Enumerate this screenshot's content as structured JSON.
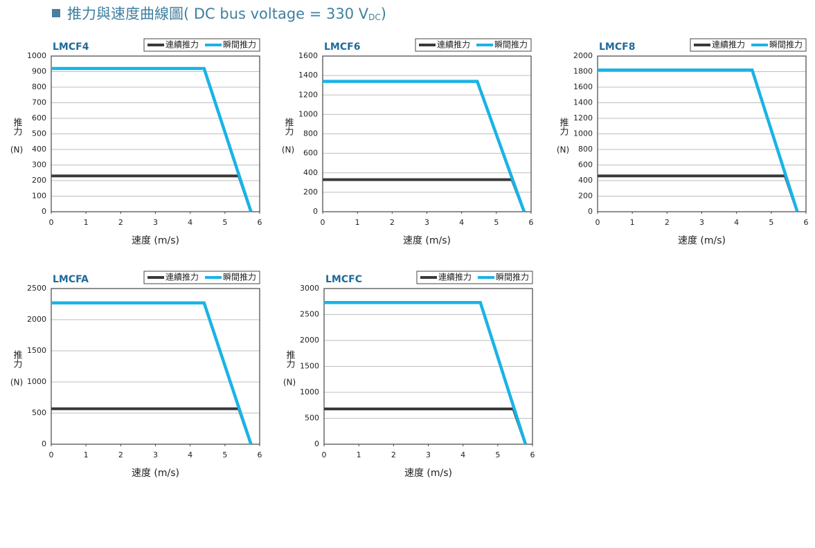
{
  "header": {
    "title": "推力與速度曲線圖( DC bus voltage = 330 V",
    "subscript": "DC",
    "end": ")"
  },
  "chart_data": [
    {
      "type": "line",
      "title": "LMCF4",
      "xlabel": "速度 (m/s)",
      "ylabel": "推力",
      "yunit": "(N)",
      "xlim": [
        0,
        6
      ],
      "xticks": [
        0,
        1,
        2,
        3,
        4,
        5,
        6
      ],
      "ylim": [
        0,
        1000
      ],
      "yticks": [
        0,
        100,
        200,
        300,
        400,
        500,
        600,
        700,
        800,
        900,
        1000
      ],
      "grid": true,
      "series": [
        {
          "name": "連續推力",
          "color": "#3a3a3a",
          "x": [
            0,
            5.4,
            5.75
          ],
          "values": [
            230,
            230,
            0
          ]
        },
        {
          "name": "瞬間推力",
          "color": "#1ab3e6",
          "x": [
            0,
            4.4,
            5.75
          ],
          "values": [
            920,
            920,
            0
          ]
        }
      ]
    },
    {
      "type": "line",
      "title": "LMCF6",
      "xlabel": "速度 (m/s)",
      "ylabel": "推力",
      "yunit": "(N)",
      "xlim": [
        0,
        6
      ],
      "xticks": [
        0,
        1,
        2,
        3,
        4,
        5,
        6
      ],
      "ylim": [
        0,
        1600
      ],
      "yticks": [
        0,
        200,
        400,
        600,
        800,
        1000,
        1200,
        1400,
        1600
      ],
      "grid": true,
      "series": [
        {
          "name": "連續推力",
          "color": "#3a3a3a",
          "x": [
            0,
            5.45,
            5.8
          ],
          "values": [
            330,
            330,
            0
          ]
        },
        {
          "name": "瞬間推力",
          "color": "#1ab3e6",
          "x": [
            0,
            4.45,
            5.8
          ],
          "values": [
            1340,
            1340,
            0
          ]
        }
      ]
    },
    {
      "type": "line",
      "title": "LMCF8",
      "xlabel": "速度 (m/s)",
      "ylabel": "推力",
      "yunit": "(N)",
      "xlim": [
        0,
        6
      ],
      "xticks": [
        0,
        1,
        2,
        3,
        4,
        5,
        6
      ],
      "ylim": [
        0,
        2000
      ],
      "yticks": [
        0,
        200,
        400,
        600,
        800,
        1000,
        1200,
        1400,
        1600,
        1800,
        2000
      ],
      "grid": true,
      "series": [
        {
          "name": "連續推力",
          "color": "#3a3a3a",
          "x": [
            0,
            5.4,
            5.75
          ],
          "values": [
            460,
            460,
            0
          ]
        },
        {
          "name": "瞬間推力",
          "color": "#1ab3e6",
          "x": [
            0,
            4.45,
            5.75
          ],
          "values": [
            1820,
            1820,
            0
          ]
        }
      ]
    },
    {
      "type": "line",
      "title": "LMCFA",
      "xlabel": "速度 (m/s)",
      "ylabel": "推力",
      "yunit": "(N)",
      "xlim": [
        0,
        6
      ],
      "xticks": [
        0,
        1,
        2,
        3,
        4,
        5,
        6
      ],
      "ylim": [
        0,
        2500
      ],
      "yticks": [
        0,
        500,
        1000,
        1500,
        2000,
        2500
      ],
      "grid": true,
      "series": [
        {
          "name": "連續推力",
          "color": "#3a3a3a",
          "x": [
            0,
            5.4,
            5.75
          ],
          "values": [
            570,
            570,
            0
          ]
        },
        {
          "name": "瞬間推力",
          "color": "#1ab3e6",
          "x": [
            0,
            4.4,
            5.75
          ],
          "values": [
            2270,
            2270,
            0
          ]
        }
      ]
    },
    {
      "type": "line",
      "title": "LMCFC",
      "xlabel": "速度 (m/s)",
      "ylabel": "推力",
      "yunit": "(N)",
      "xlim": [
        0,
        6
      ],
      "xticks": [
        0,
        1,
        2,
        3,
        4,
        5,
        6
      ],
      "ylim": [
        0,
        3000
      ],
      "yticks": [
        0,
        500,
        1000,
        1500,
        2000,
        2500,
        3000
      ],
      "grid": true,
      "series": [
        {
          "name": "連續推力",
          "color": "#3a3a3a",
          "x": [
            0,
            5.45,
            5.8
          ],
          "values": [
            680,
            680,
            0
          ]
        },
        {
          "name": "瞬間推力",
          "color": "#1ab3e6",
          "x": [
            0,
            4.5,
            5.8
          ],
          "values": [
            2730,
            2730,
            0
          ]
        }
      ]
    }
  ]
}
